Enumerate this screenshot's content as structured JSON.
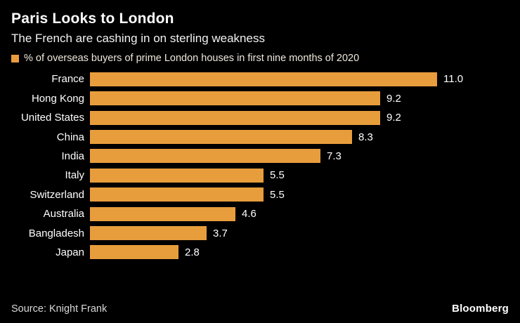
{
  "header": {
    "title": "Paris Looks to London",
    "subtitle": "The French are cashing in on sterling weakness"
  },
  "legend": {
    "label": "% of overseas buyers of prime London houses in first nine months of 2020",
    "swatch_color": "#e89d3c"
  },
  "colors": {
    "background": "#000000",
    "bar": "#e89d3c",
    "text": "#ffffff"
  },
  "chart_data": {
    "type": "bar",
    "orientation": "horizontal",
    "title": "Paris Looks to London",
    "subtitle": "The French are cashing in on sterling weakness",
    "series_label": "% of overseas buyers of prime London houses in first nine months of 2020",
    "categories": [
      "France",
      "Hong Kong",
      "United States",
      "China",
      "India",
      "Italy",
      "Switzerland",
      "Australia",
      "Bangladesh",
      "Japan"
    ],
    "values": [
      11.0,
      9.2,
      9.2,
      8.3,
      7.3,
      5.5,
      5.5,
      4.6,
      3.7,
      2.8
    ],
    "value_labels": [
      "11.0",
      "9.2",
      "9.2",
      "8.3",
      "7.3",
      "5.5",
      "5.5",
      "4.6",
      "3.7",
      "2.8"
    ],
    "xlabel": "",
    "ylabel": "",
    "xlim": [
      0,
      11.0
    ],
    "grid": false,
    "legend_position": "top-left",
    "bar_color": "#e89d3c"
  },
  "footer": {
    "source": "Source: Knight Frank",
    "brand": "Bloomberg"
  }
}
